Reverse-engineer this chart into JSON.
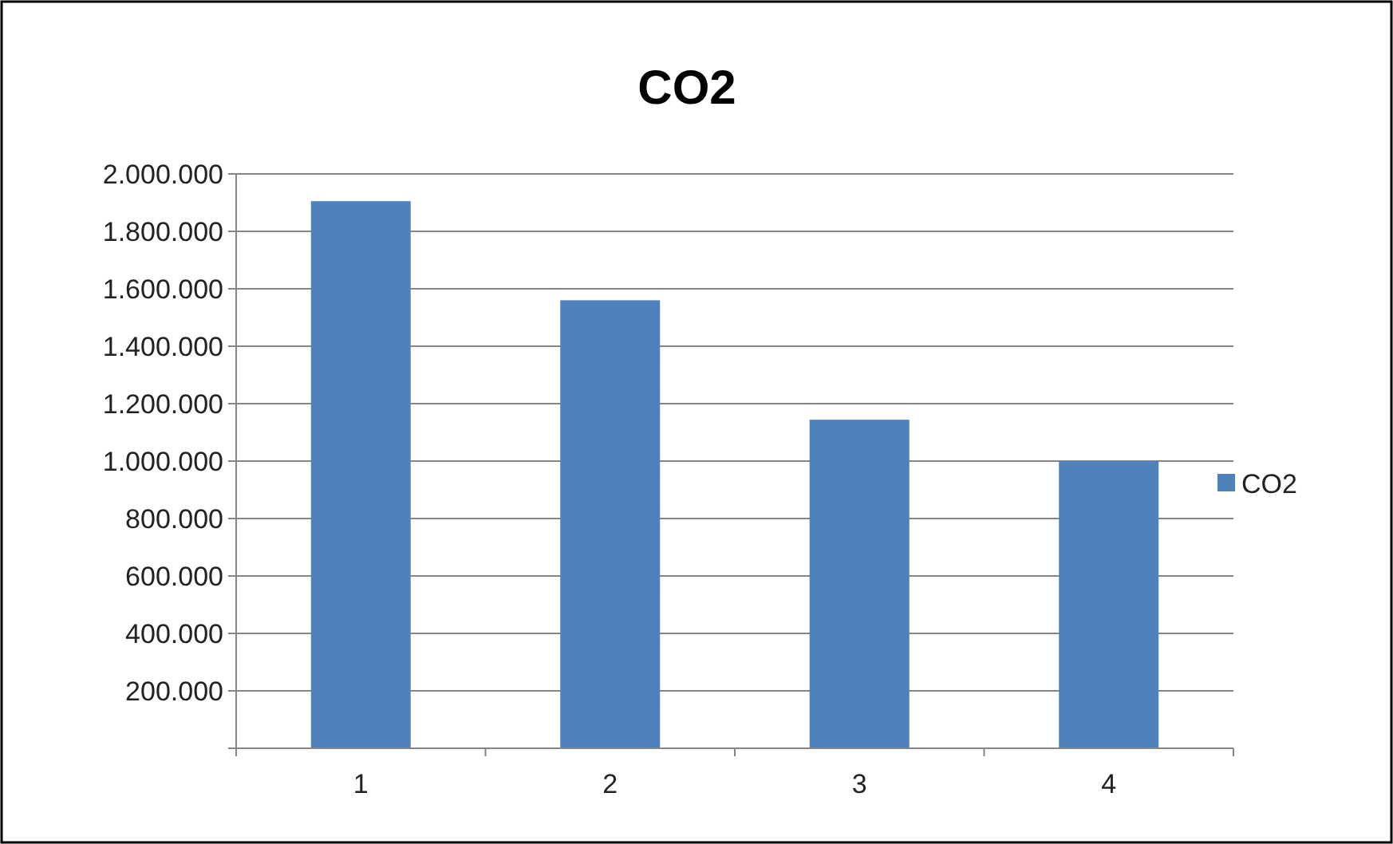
{
  "chart_data": {
    "type": "bar",
    "title": "CO2",
    "categories": [
      "1",
      "2",
      "3",
      "4"
    ],
    "series": [
      {
        "name": "CO2",
        "color": "#4f81bd",
        "values": [
          1905000,
          1560000,
          1144000,
          1000000
        ]
      }
    ],
    "ylim": [
      0,
      2000000
    ],
    "yticks": [
      {
        "value": 0,
        "label": null
      },
      {
        "value": 200000,
        "label": "200.000"
      },
      {
        "value": 400000,
        "label": "400.000"
      },
      {
        "value": 600000,
        "label": "600.000"
      },
      {
        "value": 800000,
        "label": "800.000"
      },
      {
        "value": 1000000,
        "label": "1.000.000"
      },
      {
        "value": 1200000,
        "label": "1.200.000"
      },
      {
        "value": 1400000,
        "label": "1.400.000"
      },
      {
        "value": 1600000,
        "label": "1.600.000"
      },
      {
        "value": 1800000,
        "label": "1.800.000"
      },
      {
        "value": 2000000,
        "label": "2.000.000"
      }
    ],
    "grid": "y",
    "legend": "right"
  }
}
